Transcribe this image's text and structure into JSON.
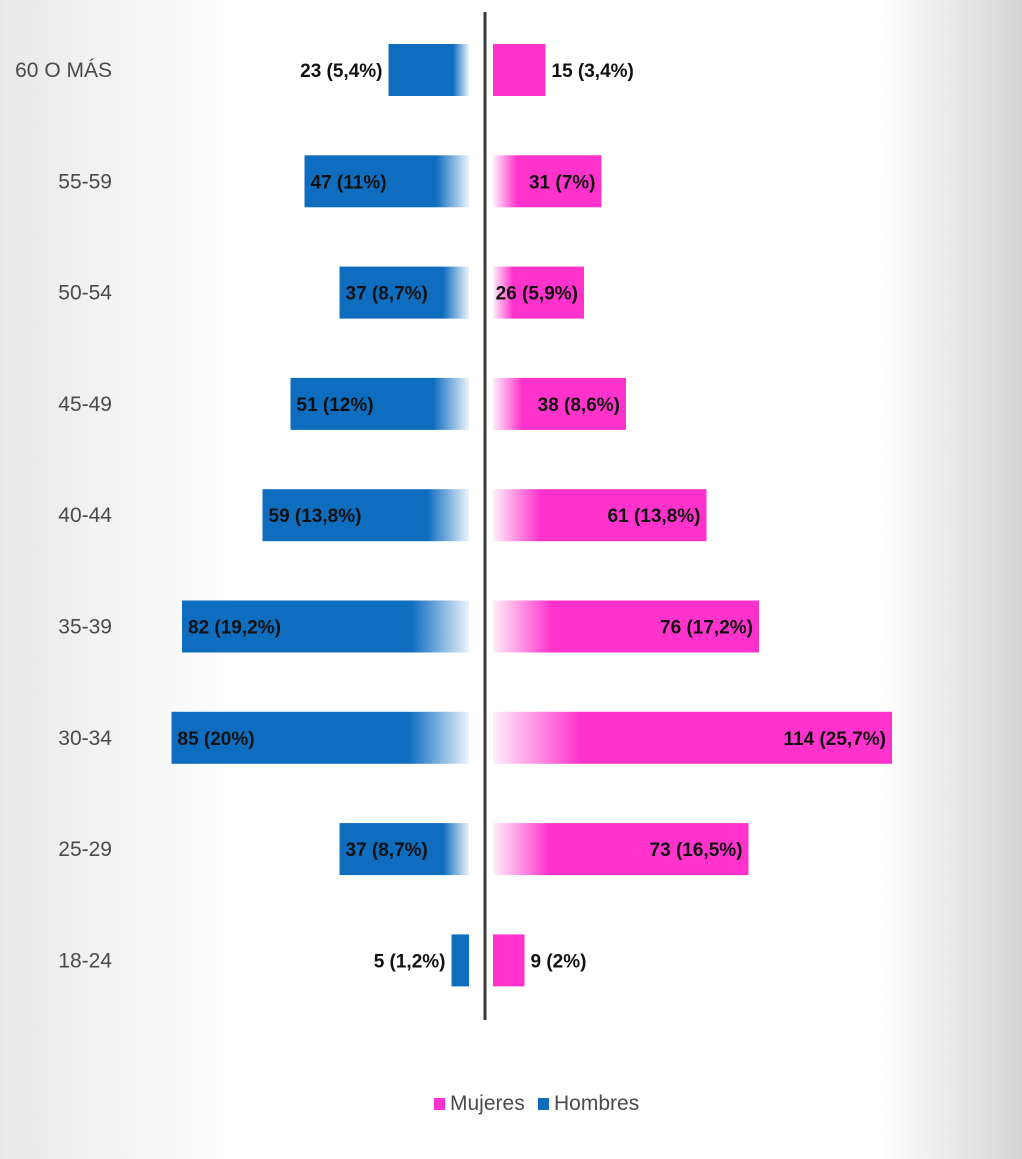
{
  "chart_data": {
    "type": "bar",
    "orientation": "horizontal-population-pyramid",
    "categories": [
      "60 O MÁS",
      "55-59",
      "50-54",
      "45-49",
      "40-44",
      "35-39",
      "30-34",
      "25-29",
      "18-24"
    ],
    "series": [
      {
        "name": "Hombres",
        "side": "left",
        "color": "#0f6dc0",
        "values": [
          23,
          47,
          37,
          51,
          59,
          82,
          85,
          37,
          5
        ],
        "labels": [
          "23 (5,4%)",
          "47 (11%)",
          "37 (8,7%)",
          "51 (12%)",
          "59 (13,8%)",
          "82 (19,2%)",
          "85 (20%)",
          "37 (8,7%)",
          "5 (1,2%)"
        ]
      },
      {
        "name": "Mujeres",
        "side": "right",
        "color": "#ff33cc",
        "values": [
          15,
          31,
          26,
          38,
          61,
          76,
          114,
          73,
          9
        ],
        "labels": [
          "15 (3,4%)",
          "31 (7%)",
          "26 (5,9%)",
          "38 (8,6%)",
          "61 (13,8%)",
          "76 (17,2%)",
          "114 (25,7%)",
          "73 (16,5%)",
          "9 (2%)"
        ]
      }
    ],
    "legend": {
      "position": "bottom-center",
      "entries": [
        "Mujeres",
        "Hombres"
      ]
    },
    "grid": false
  }
}
